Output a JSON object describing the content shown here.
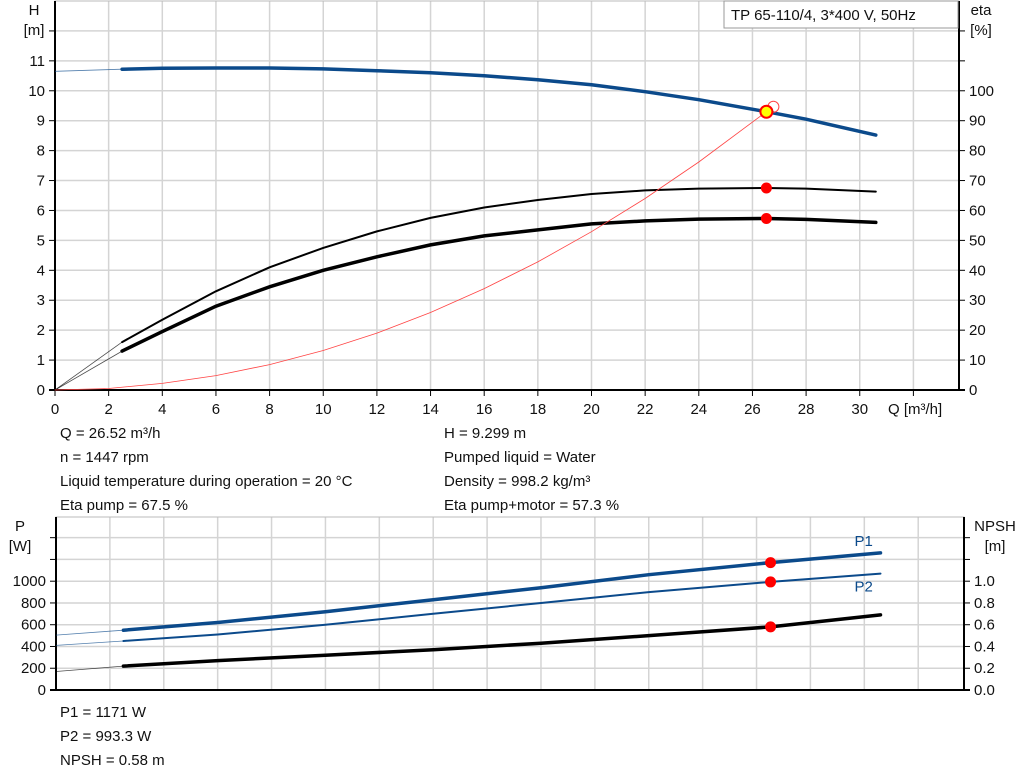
{
  "chart_data": [
    {
      "type": "line",
      "legend_box": "TP 65-110/4, 3*400 V, 50Hz",
      "xlabel": "Q [m³/h]",
      "ylabel_left": [
        "H",
        "[m]"
      ],
      "ylabel_right": [
        "eta",
        "[%]"
      ],
      "xlim": [
        0,
        33.7
      ],
      "ylim_left": [
        0,
        13
      ],
      "ylim_right": [
        0,
        130
      ],
      "x_ticks": [
        0,
        2,
        4,
        6,
        8,
        10,
        12,
        14,
        16,
        18,
        20,
        22,
        24,
        26,
        28,
        30
      ],
      "y_ticks_left": [
        0,
        1,
        2,
        3,
        4,
        5,
        6,
        7,
        8,
        9,
        10,
        11
      ],
      "y_ticks_right": [
        0,
        10,
        20,
        30,
        40,
        50,
        60,
        70,
        80,
        90,
        100
      ],
      "grid": true,
      "series": [
        {
          "id": "H",
          "axis": "left",
          "color": "#0b4a8b",
          "thick": true,
          "extension": [
            [
              0,
              10.65
            ],
            [
              2.5,
              10.72
            ]
          ],
          "points": [
            [
              2.5,
              10.72
            ],
            [
              4,
              10.75
            ],
            [
              6,
              10.76
            ],
            [
              8,
              10.76
            ],
            [
              10,
              10.73
            ],
            [
              12,
              10.67
            ],
            [
              14,
              10.6
            ],
            [
              16,
              10.5
            ],
            [
              18,
              10.37
            ],
            [
              20,
              10.2
            ],
            [
              22,
              9.97
            ],
            [
              24,
              9.7
            ],
            [
              26.52,
              9.3
            ],
            [
              28,
              9.05
            ],
            [
              30.6,
              8.52
            ]
          ]
        },
        {
          "id": "eta-pump",
          "axis": "right",
          "color": "#000000",
          "thick": false,
          "extension": [
            [
              0,
              0
            ],
            [
              2.5,
              16
            ]
          ],
          "points": [
            [
              2.5,
              16
            ],
            [
              4,
              23.5
            ],
            [
              6,
              33
            ],
            [
              8,
              41
            ],
            [
              10,
              47.5
            ],
            [
              12,
              53
            ],
            [
              14,
              57.5
            ],
            [
              16,
              61
            ],
            [
              18,
              63.5
            ],
            [
              20,
              65.5
            ],
            [
              22,
              66.7
            ],
            [
              24,
              67.3
            ],
            [
              26.52,
              67.5
            ],
            [
              28,
              67.3
            ],
            [
              30.6,
              66.3
            ]
          ]
        },
        {
          "id": "eta-pump-motor",
          "axis": "right",
          "color": "#000000",
          "thick": true,
          "extension": [
            [
              0,
              0
            ],
            [
              2.5,
              13
            ]
          ],
          "points": [
            [
              2.5,
              13
            ],
            [
              4,
              19.5
            ],
            [
              6,
              28
            ],
            [
              8,
              34.5
            ],
            [
              10,
              40
            ],
            [
              12,
              44.5
            ],
            [
              14,
              48.5
            ],
            [
              16,
              51.5
            ],
            [
              18,
              53.5
            ],
            [
              20,
              55.5
            ],
            [
              22,
              56.5
            ],
            [
              24,
              57.1
            ],
            [
              26.52,
              57.3
            ],
            [
              28,
              57
            ],
            [
              30.6,
              56
            ]
          ]
        },
        {
          "id": "system-curve",
          "axis": "left",
          "color": "#ff4444",
          "thin": true,
          "points": [
            [
              0,
              0
            ],
            [
              2,
              0.05
            ],
            [
              4,
              0.22
            ],
            [
              6,
              0.48
            ],
            [
              8,
              0.85
            ],
            [
              10,
              1.32
            ],
            [
              12,
              1.9
            ],
            [
              14,
              2.59
            ],
            [
              16,
              3.39
            ],
            [
              18,
              4.28
            ],
            [
              20,
              5.29
            ],
            [
              22,
              6.4
            ],
            [
              24,
              7.62
            ],
            [
              26.52,
              9.3
            ]
          ]
        }
      ],
      "markers": [
        {
          "id": "duty-point",
          "x": 26.52,
          "y": 9.299,
          "axis": "left",
          "fill": "#ffff00",
          "stroke": "#ff0000"
        },
        {
          "id": "eta-pump-point",
          "x": 26.52,
          "y": 67.5,
          "axis": "right",
          "fill": "#ff0000"
        },
        {
          "id": "eta-pump-motor-point",
          "x": 26.52,
          "y": 57.3,
          "axis": "right",
          "fill": "#ff0000"
        }
      ]
    },
    {
      "type": "line",
      "ylabel_left": [
        "P",
        "[W]"
      ],
      "ylabel_right": [
        "NPSH",
        "[m]"
      ],
      "xlim": [
        0,
        33.7
      ],
      "ylim_left": [
        0,
        1590
      ],
      "ylim_right": [
        0,
        1.59
      ],
      "y_ticks_left": [
        0,
        200,
        400,
        600,
        800,
        1000
      ],
      "y_ticks_right": [
        "0.0",
        "0.2",
        "0.4",
        "0.6",
        "0.8",
        "1.0"
      ],
      "grid": true,
      "series": [
        {
          "id": "P1",
          "name": "P1",
          "axis": "left",
          "color": "#0b4a8b",
          "thick": true,
          "extension": [
            [
              0,
              505
            ],
            [
              2.5,
              550
            ]
          ],
          "points": [
            [
              2.5,
              550
            ],
            [
              6,
              620
            ],
            [
              10,
              720
            ],
            [
              14,
              830
            ],
            [
              18,
              940
            ],
            [
              22,
              1060
            ],
            [
              26.52,
              1171
            ],
            [
              30.6,
              1260
            ]
          ]
        },
        {
          "id": "P2",
          "name": "P2",
          "axis": "left",
          "color": "#0b4a8b",
          "thick": false,
          "extension": [
            [
              0,
              410
            ],
            [
              2.5,
              450
            ]
          ],
          "points": [
            [
              2.5,
              450
            ],
            [
              6,
              510
            ],
            [
              10,
              600
            ],
            [
              14,
              700
            ],
            [
              18,
              800
            ],
            [
              22,
              900
            ],
            [
              26.52,
              993.3
            ],
            [
              30.6,
              1070
            ]
          ]
        },
        {
          "id": "NPSH",
          "axis": "right",
          "color": "#000000",
          "thick": true,
          "extension": [
            [
              0,
              0.17
            ],
            [
              2.5,
              0.22
            ]
          ],
          "points": [
            [
              2.5,
              0.22
            ],
            [
              6,
              0.27
            ],
            [
              10,
              0.32
            ],
            [
              14,
              0.37
            ],
            [
              18,
              0.43
            ],
            [
              22,
              0.5
            ],
            [
              26.52,
              0.58
            ],
            [
              30.6,
              0.69
            ]
          ]
        }
      ],
      "markers": [
        {
          "id": "p1-point",
          "x": 26.52,
          "y": 1171,
          "axis": "left",
          "fill": "#ff0000"
        },
        {
          "id": "p2-point",
          "x": 26.52,
          "y": 993.3,
          "axis": "left",
          "fill": "#ff0000"
        },
        {
          "id": "npsh-point",
          "x": 26.52,
          "y": 0.58,
          "axis": "right",
          "fill": "#ff0000"
        }
      ]
    }
  ],
  "info_top_left": [
    "Q = 26.52 m³/h",
    "n = 1447 rpm",
    "Liquid temperature during operation = 20 °C",
    "Eta pump = 67.5 %"
  ],
  "info_top_right": [
    "H = 9.299 m",
    "Pumped liquid = Water",
    "Density = 998.2 kg/m³",
    "Eta pump+motor = 57.3 %"
  ],
  "info_bottom": [
    "P1 = 1171 W",
    "P2 = 993.3 W",
    "NPSH = 0.58 m"
  ]
}
